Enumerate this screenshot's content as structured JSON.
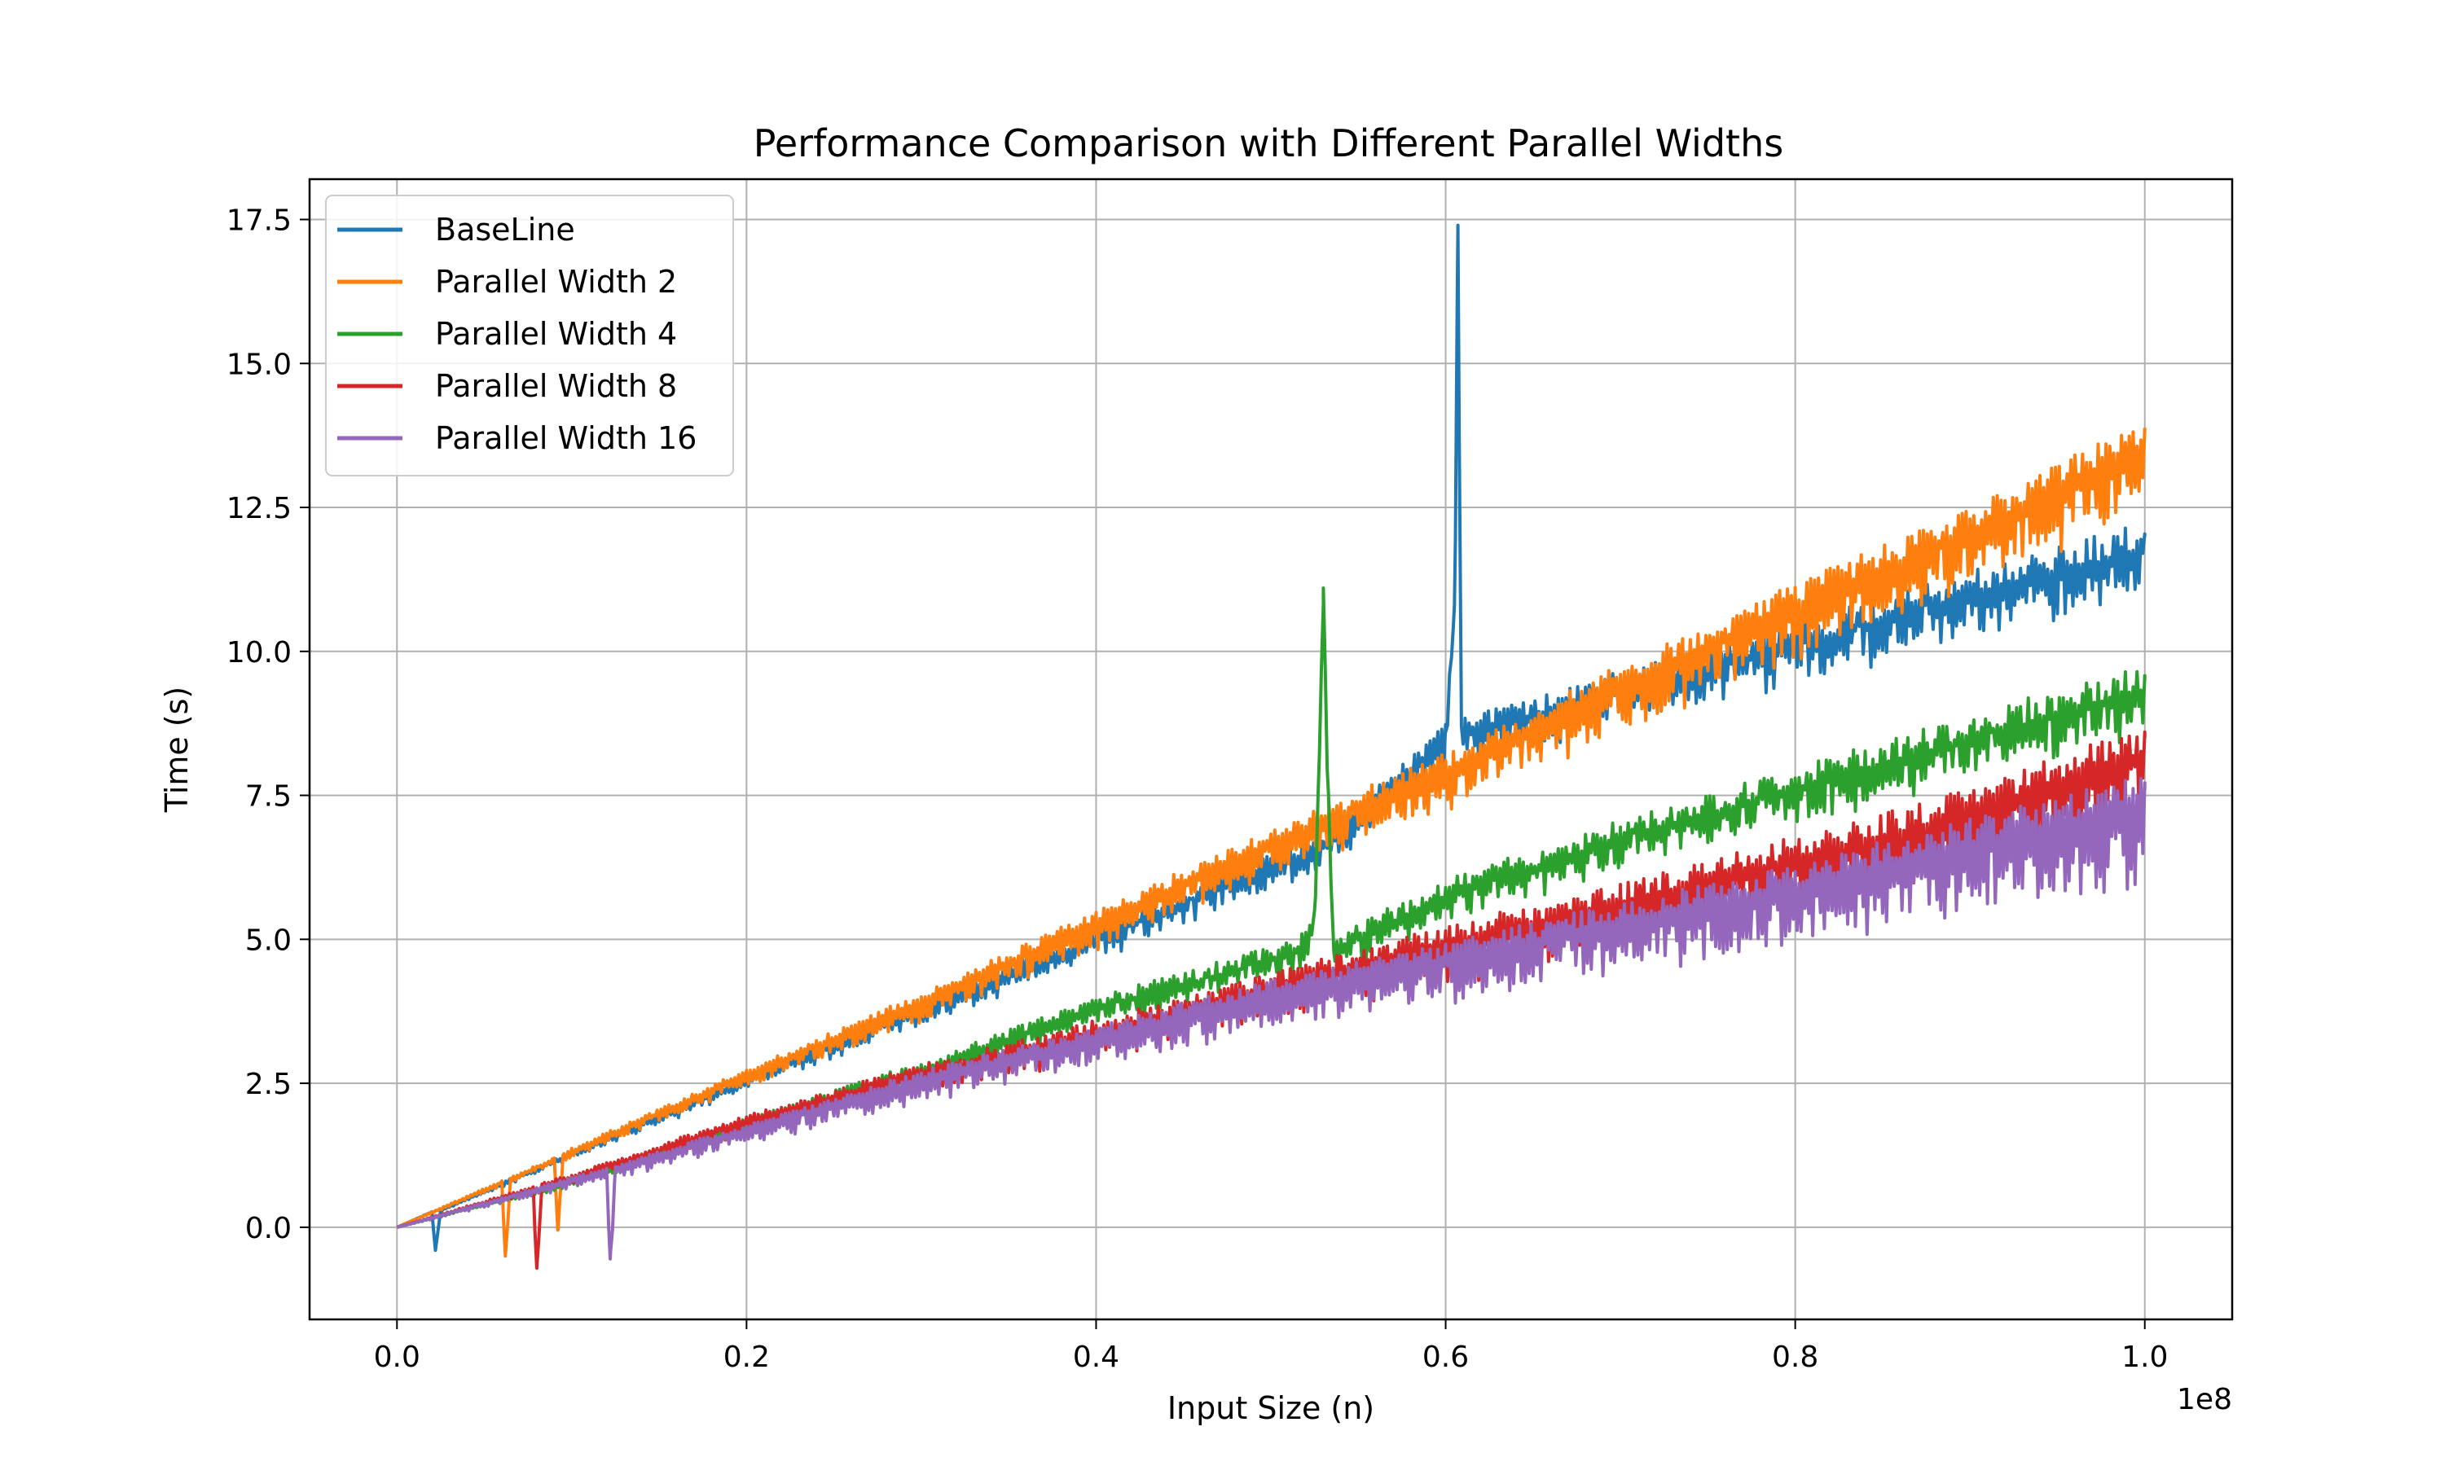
{
  "chart_data": {
    "type": "line",
    "title": "Performance Comparison with Different Parallel Widths",
    "xlabel": "Input Size (n)",
    "ylabel": "Time (s)",
    "x_offset_text": "1e8",
    "xlim": [
      -0.05,
      1.05
    ],
    "ylim": [
      -1.6,
      18.2
    ],
    "x_ticks": [
      {
        "value": 0.0,
        "label": "0.0"
      },
      {
        "value": 0.2,
        "label": "0.2"
      },
      {
        "value": 0.4,
        "label": "0.4"
      },
      {
        "value": 0.6,
        "label": "0.6"
      },
      {
        "value": 0.8,
        "label": "0.8"
      },
      {
        "value": 1.0,
        "label": "1.0"
      }
    ],
    "y_ticks": [
      {
        "value": 0.0,
        "label": "0.0"
      },
      {
        "value": 2.5,
        "label": "2.5"
      },
      {
        "value": 5.0,
        "label": "5.0"
      },
      {
        "value": 7.5,
        "label": "7.5"
      },
      {
        "value": 10.0,
        "label": "10.0"
      },
      {
        "value": 12.5,
        "label": "12.5"
      },
      {
        "value": 15.0,
        "label": "15.0"
      },
      {
        "value": 17.5,
        "label": "17.5"
      }
    ],
    "grid": true,
    "legend_position": "upper-left",
    "series": [
      {
        "name": "BaseLine",
        "color": "#1f77b4",
        "x": [
          0.0,
          0.02,
          0.022,
          0.025,
          0.1,
          0.2,
          0.3,
          0.4,
          0.5,
          0.53,
          0.6,
          0.605,
          0.607,
          0.609,
          0.611,
          0.7,
          0.8,
          0.9,
          1.0
        ],
        "y": [
          0.0,
          0.27,
          -0.4,
          0.3,
          1.3,
          2.6,
          3.85,
          5.1,
          6.4,
          6.7,
          8.6,
          10.8,
          17.4,
          8.7,
          8.7,
          9.5,
          10.3,
          11.2,
          12.0
        ],
        "noise_amplitude": 1.0
      },
      {
        "name": "Parallel Width 2",
        "color": "#ff7f0e",
        "x": [
          0.0,
          0.06,
          0.062,
          0.065,
          0.09,
          0.092,
          0.095,
          0.1,
          0.2,
          0.3,
          0.4,
          0.5,
          0.6,
          0.7,
          0.8,
          0.9,
          1.0
        ],
        "y": [
          0.0,
          0.8,
          -0.5,
          0.85,
          1.2,
          -0.05,
          1.25,
          1.35,
          2.7,
          4.0,
          5.4,
          6.8,
          8.1,
          9.6,
          11.0,
          12.3,
          13.8
        ],
        "noise_amplitude": 1.3
      },
      {
        "name": "Parallel Width 4",
        "color": "#2ca02c",
        "x": [
          0.0,
          0.1,
          0.2,
          0.3,
          0.4,
          0.5,
          0.52,
          0.525,
          0.527,
          0.53,
          0.533,
          0.536,
          0.54,
          0.6,
          0.7,
          0.8,
          0.9,
          1.0
        ],
        "y": [
          0.0,
          0.8,
          1.85,
          2.8,
          3.9,
          4.75,
          5.0,
          5.5,
          7.5,
          11.1,
          7.5,
          4.8,
          5.0,
          5.9,
          6.9,
          7.8,
          8.7,
          9.5
        ],
        "noise_amplitude": 0.9
      },
      {
        "name": "Parallel Width 8",
        "color": "#d62728",
        "x": [
          0.0,
          0.078,
          0.08,
          0.083,
          0.1,
          0.2,
          0.3,
          0.4,
          0.5,
          0.6,
          0.7,
          0.8,
          0.9,
          1.0
        ],
        "y": [
          0.0,
          0.7,
          -0.7,
          0.75,
          0.9,
          1.9,
          2.75,
          3.5,
          4.3,
          5.1,
          5.8,
          6.6,
          7.4,
          8.5
        ],
        "noise_amplitude": 1.4
      },
      {
        "name": "Parallel Width 16",
        "color": "#9467bd",
        "x": [
          0.0,
          0.1,
          0.12,
          0.122,
          0.125,
          0.2,
          0.3,
          0.4,
          0.5,
          0.6,
          0.7,
          0.8,
          0.9,
          1.0
        ],
        "y": [
          0.0,
          0.85,
          1.0,
          -0.55,
          1.05,
          1.75,
          2.65,
          3.4,
          4.2,
          4.8,
          5.5,
          6.1,
          6.9,
          7.6
        ],
        "noise_amplitude": 1.5
      }
    ]
  }
}
